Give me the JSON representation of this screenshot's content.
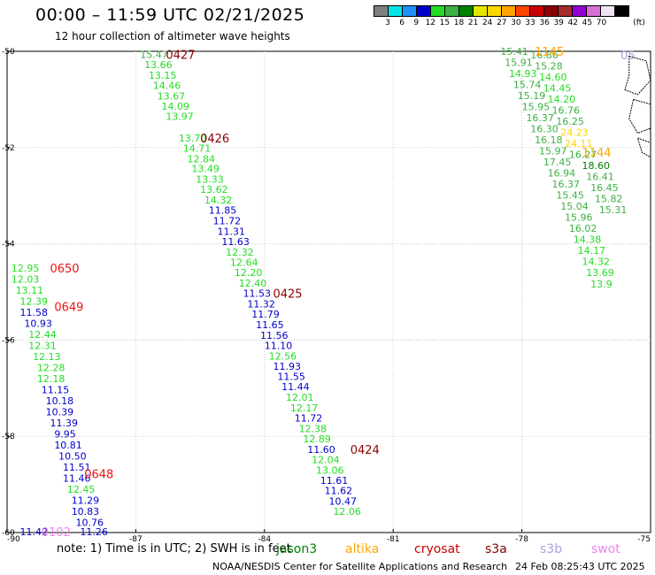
{
  "header": {
    "title": "00:00 – 11:59 UTC 02/21/2025",
    "subtitle": "12 hour collection of altimeter wave heights"
  },
  "color_scale": {
    "unit_label": "(ft)",
    "swatches": [
      "#808080",
      "#00e6e6",
      "#1e90ff",
      "#0000cd",
      "#22dd22",
      "#3cb043",
      "#008000",
      "#e6e600",
      "#ffd700",
      "#ffa500",
      "#ff4500",
      "#cc0000",
      "#8b0000",
      "#a52a2a",
      "#9400d3",
      "#da70d6",
      "#f0e6f0",
      "#000000"
    ],
    "labels": [
      "3",
      "6",
      "9",
      "12",
      "15",
      "18",
      "21",
      "24",
      "27",
      "30",
      "33",
      "36",
      "39",
      "42",
      "45",
      "70"
    ]
  },
  "footer": {
    "note": "note:  1) Time is in UTC; 2) SWH is in feet",
    "credit": "NOAA/NESDIS Center for Satellite Applications and Research",
    "timestamp": "24 Feb 08:25:43 UTC 2025",
    "missions": [
      {
        "name": "jason3",
        "color": "#008000"
      },
      {
        "name": "altika",
        "color": "#ffa500"
      },
      {
        "name": "cryosat",
        "color": "#cc0000"
      },
      {
        "name": "s3a",
        "color": "#8b0000"
      },
      {
        "name": "s3b",
        "color": "#b0a0e0"
      },
      {
        "name": "swot",
        "color": "#ee82ee"
      }
    ]
  },
  "chart_data": {
    "type": "scatter",
    "xlim": [
      -90,
      -75
    ],
    "ylim": [
      -60,
      -50
    ],
    "x_ticks": [
      -90,
      -87,
      -84,
      -81,
      -78,
      -75
    ],
    "y_ticks": [
      -50,
      -52,
      -54,
      -56,
      -58,
      -60
    ],
    "x_tick_labels": [
      "-90",
      "-87",
      "-84",
      "-81",
      "-78",
      "-75"
    ],
    "y_tick_labels": [
      "-50",
      "-52",
      "-54",
      "-56",
      "-58",
      "-60"
    ],
    "grid": true,
    "series": [
      {
        "name": "track-0427-0424",
        "points": [
          {
            "lon": -86.9,
            "lat": -50.06,
            "v": "15.47",
            "c": "#3cb043"
          },
          {
            "lon": -86.8,
            "lat": -50.28,
            "v": "13.66",
            "c": "#22dd22"
          },
          {
            "lon": -86.7,
            "lat": -50.5,
            "v": "13.15",
            "c": "#22dd22"
          },
          {
            "lon": -86.6,
            "lat": -50.71,
            "v": "14.46",
            "c": "#22dd22"
          },
          {
            "lon": -86.5,
            "lat": -50.93,
            "v": "13.67",
            "c": "#22dd22"
          },
          {
            "lon": -86.4,
            "lat": -51.14,
            "v": "14.09",
            "c": "#22dd22"
          },
          {
            "lon": -86.3,
            "lat": -51.35,
            "v": "13.97",
            "c": "#22dd22"
          },
          {
            "lon": -86.0,
            "lat": -51.8,
            "v": "13.70",
            "c": "#22dd22"
          },
          {
            "lon": -85.9,
            "lat": -52.01,
            "v": "14.71",
            "c": "#22dd22"
          },
          {
            "lon": -85.8,
            "lat": -52.23,
            "v": "12.84",
            "c": "#22dd22"
          },
          {
            "lon": -85.7,
            "lat": -52.44,
            "v": "13.49",
            "c": "#22dd22"
          },
          {
            "lon": -85.6,
            "lat": -52.66,
            "v": "13.33",
            "c": "#22dd22"
          },
          {
            "lon": -85.5,
            "lat": -52.87,
            "v": "13.62",
            "c": "#22dd22"
          },
          {
            "lon": -85.4,
            "lat": -53.09,
            "v": "14.32",
            "c": "#22dd22"
          },
          {
            "lon": -85.3,
            "lat": -53.3,
            "v": "11.85",
            "c": "#0000cd"
          },
          {
            "lon": -85.2,
            "lat": -53.52,
            "v": "11.72",
            "c": "#0000cd"
          },
          {
            "lon": -85.1,
            "lat": -53.74,
            "v": "11.31",
            "c": "#0000cd"
          },
          {
            "lon": -85.0,
            "lat": -53.95,
            "v": "11.63",
            "c": "#0000cd"
          },
          {
            "lon": -84.9,
            "lat": -54.17,
            "v": "12.32",
            "c": "#22dd22"
          },
          {
            "lon": -84.8,
            "lat": -54.38,
            "v": "12.64",
            "c": "#22dd22"
          },
          {
            "lon": -84.7,
            "lat": -54.6,
            "v": "12.20",
            "c": "#22dd22"
          },
          {
            "lon": -84.6,
            "lat": -54.82,
            "v": "12.40",
            "c": "#22dd22"
          },
          {
            "lon": -84.5,
            "lat": -55.03,
            "v": "11.53",
            "c": "#0000cd"
          },
          {
            "lon": -84.4,
            "lat": -55.25,
            "v": "11.32",
            "c": "#0000cd"
          },
          {
            "lon": -84.3,
            "lat": -55.46,
            "v": "11.79",
            "c": "#0000cd"
          },
          {
            "lon": -84.2,
            "lat": -55.68,
            "v": "11.65",
            "c": "#0000cd"
          },
          {
            "lon": -84.1,
            "lat": -55.9,
            "v": "11.56",
            "c": "#0000cd"
          },
          {
            "lon": -84.0,
            "lat": -56.11,
            "v": "11.10",
            "c": "#0000cd"
          },
          {
            "lon": -83.9,
            "lat": -56.33,
            "v": "12.56",
            "c": "#22dd22"
          },
          {
            "lon": -83.8,
            "lat": -56.54,
            "v": "11.93",
            "c": "#0000cd"
          },
          {
            "lon": -83.7,
            "lat": -56.76,
            "v": "11.55",
            "c": "#0000cd"
          },
          {
            "lon": -83.6,
            "lat": -56.97,
            "v": "11.44",
            "c": "#0000cd"
          },
          {
            "lon": -83.5,
            "lat": -57.19,
            "v": "12.01",
            "c": "#22dd22"
          },
          {
            "lon": -83.4,
            "lat": -57.41,
            "v": "12.17",
            "c": "#22dd22"
          },
          {
            "lon": -83.3,
            "lat": -57.62,
            "v": "11.72",
            "c": "#0000cd"
          },
          {
            "lon": -83.2,
            "lat": -57.84,
            "v": "12.38",
            "c": "#22dd22"
          },
          {
            "lon": -83.1,
            "lat": -58.05,
            "v": "12.89",
            "c": "#22dd22"
          },
          {
            "lon": -83.0,
            "lat": -58.27,
            "v": "11.60",
            "c": "#0000cd"
          },
          {
            "lon": -82.9,
            "lat": -58.48,
            "v": "12.04",
            "c": "#22dd22"
          },
          {
            "lon": -82.8,
            "lat": -58.7,
            "v": "13.06",
            "c": "#22dd22"
          },
          {
            "lon": -82.7,
            "lat": -58.92,
            "v": "11.61",
            "c": "#0000cd"
          },
          {
            "lon": -82.6,
            "lat": -59.13,
            "v": "11.62",
            "c": "#0000cd"
          },
          {
            "lon": -82.5,
            "lat": -59.35,
            "v": "10.47",
            "c": "#0000cd"
          },
          {
            "lon": -82.4,
            "lat": -59.56,
            "v": "12.06",
            "c": "#22dd22"
          }
        ]
      },
      {
        "name": "track-0650-0648",
        "points": [
          {
            "lon": -89.9,
            "lat": -54.5,
            "v": "12.95",
            "c": "#22dd22"
          },
          {
            "lon": -89.9,
            "lat": -54.73,
            "v": "12.03",
            "c": "#22dd22"
          },
          {
            "lon": -89.8,
            "lat": -54.96,
            "v": "13.11",
            "c": "#22dd22"
          },
          {
            "lon": -89.7,
            "lat": -55.19,
            "v": "12.39",
            "c": "#22dd22"
          },
          {
            "lon": -89.7,
            "lat": -55.42,
            "v": "11.58",
            "c": "#0000cd"
          },
          {
            "lon": -89.6,
            "lat": -55.65,
            "v": "10.93",
            "c": "#0000cd"
          },
          {
            "lon": -89.5,
            "lat": -55.88,
            "v": "12.44",
            "c": "#22dd22"
          },
          {
            "lon": -89.5,
            "lat": -56.11,
            "v": "12.31",
            "c": "#22dd22"
          },
          {
            "lon": -89.4,
            "lat": -56.34,
            "v": "12.13",
            "c": "#22dd22"
          },
          {
            "lon": -89.3,
            "lat": -56.57,
            "v": "12.28",
            "c": "#22dd22"
          },
          {
            "lon": -89.3,
            "lat": -56.8,
            "v": "12.18",
            "c": "#22dd22"
          },
          {
            "lon": -89.2,
            "lat": -57.03,
            "v": "11.15",
            "c": "#0000cd"
          },
          {
            "lon": -89.1,
            "lat": -57.26,
            "v": "10.18",
            "c": "#0000cd"
          },
          {
            "lon": -89.1,
            "lat": -57.49,
            "v": "10.39",
            "c": "#0000cd"
          },
          {
            "lon": -89.0,
            "lat": -57.72,
            "v": "11.39",
            "c": "#0000cd"
          },
          {
            "lon": -88.9,
            "lat": -57.95,
            "v": "9.95",
            "c": "#0000cd"
          },
          {
            "lon": -88.9,
            "lat": -58.18,
            "v": "10.81",
            "c": "#0000cd"
          },
          {
            "lon": -88.8,
            "lat": -58.41,
            "v": "10.50",
            "c": "#0000cd"
          },
          {
            "lon": -88.7,
            "lat": -58.64,
            "v": "11.51",
            "c": "#0000cd"
          },
          {
            "lon": -88.7,
            "lat": -58.87,
            "v": "11.46",
            "c": "#0000cd"
          },
          {
            "lon": -88.6,
            "lat": -59.1,
            "v": "12.45",
            "c": "#22dd22"
          },
          {
            "lon": -88.5,
            "lat": -59.33,
            "v": "11.29",
            "c": "#0000cd"
          },
          {
            "lon": -88.5,
            "lat": -59.56,
            "v": "10.83",
            "c": "#0000cd"
          },
          {
            "lon": -88.4,
            "lat": -59.79,
            "v": "10.76",
            "c": "#0000cd"
          },
          {
            "lon": -88.3,
            "lat": -59.98,
            "v": "11.26",
            "c": "#0000cd"
          },
          {
            "lon": -89.7,
            "lat": -59.98,
            "v": "11.42",
            "c": "#0000cd"
          }
        ]
      },
      {
        "name": "track-right-green",
        "points": [
          {
            "lon": -78.5,
            "lat": -50.0,
            "v": "15.41",
            "c": "#3cb043"
          },
          {
            "lon": -78.4,
            "lat": -50.23,
            "v": "15.91",
            "c": "#3cb043"
          },
          {
            "lon": -78.3,
            "lat": -50.46,
            "v": "14.93",
            "c": "#22dd22"
          },
          {
            "lon": -78.2,
            "lat": -50.69,
            "v": "15.74",
            "c": "#3cb043"
          },
          {
            "lon": -78.1,
            "lat": -50.92,
            "v": "15.19",
            "c": "#3cb043"
          },
          {
            "lon": -78.0,
            "lat": -51.15,
            "v": "15.95",
            "c": "#3cb043"
          },
          {
            "lon": -77.9,
            "lat": -51.38,
            "v": "16.37",
            "c": "#3cb043"
          },
          {
            "lon": -77.8,
            "lat": -51.61,
            "v": "16.30",
            "c": "#3cb043"
          },
          {
            "lon": -77.7,
            "lat": -51.84,
            "v": "16.18",
            "c": "#3cb043"
          },
          {
            "lon": -77.6,
            "lat": -52.07,
            "v": "15.97",
            "c": "#3cb043"
          },
          {
            "lon": -77.5,
            "lat": -52.3,
            "v": "17.45",
            "c": "#3cb043"
          },
          {
            "lon": -77.4,
            "lat": -52.53,
            "v": "16.94",
            "c": "#3cb043"
          },
          {
            "lon": -77.3,
            "lat": -52.76,
            "v": "16.37",
            "c": "#3cb043"
          },
          {
            "lon": -77.2,
            "lat": -52.99,
            "v": "15.45",
            "c": "#3cb043"
          },
          {
            "lon": -77.1,
            "lat": -53.22,
            "v": "15.04",
            "c": "#3cb043"
          },
          {
            "lon": -77.0,
            "lat": -53.45,
            "v": "15.96",
            "c": "#3cb043"
          },
          {
            "lon": -76.9,
            "lat": -53.68,
            "v": "16.02",
            "c": "#3cb043"
          },
          {
            "lon": -76.8,
            "lat": -53.91,
            "v": "14.38",
            "c": "#22dd22"
          },
          {
            "lon": -76.7,
            "lat": -54.14,
            "v": "14.17",
            "c": "#22dd22"
          },
          {
            "lon": -76.6,
            "lat": -54.37,
            "v": "14.32",
            "c": "#22dd22"
          },
          {
            "lon": -76.5,
            "lat": -54.6,
            "v": "13.69",
            "c": "#22dd22"
          },
          {
            "lon": -76.4,
            "lat": -54.83,
            "v": "13.9",
            "c": "#22dd22"
          }
        ]
      },
      {
        "name": "track-right-2",
        "points": [
          {
            "lon": -77.8,
            "lat": -50.07,
            "v": "16.86",
            "c": "#3cb043"
          },
          {
            "lon": -77.7,
            "lat": -50.3,
            "v": "15.28",
            "c": "#3cb043"
          },
          {
            "lon": -77.6,
            "lat": -50.53,
            "v": "14.60",
            "c": "#22dd22"
          },
          {
            "lon": -77.5,
            "lat": -50.76,
            "v": "14.45",
            "c": "#22dd22"
          },
          {
            "lon": -77.4,
            "lat": -50.99,
            "v": "14.20",
            "c": "#22dd22"
          },
          {
            "lon": -77.3,
            "lat": -51.22,
            "v": "16.76",
            "c": "#3cb043"
          },
          {
            "lon": -77.2,
            "lat": -51.45,
            "v": "16.25",
            "c": "#3cb043"
          },
          {
            "lon": -77.1,
            "lat": -51.68,
            "v": "24.23",
            "c": "#ffd700"
          },
          {
            "lon": -77.0,
            "lat": -51.91,
            "v": "24.11",
            "c": "#ffd700"
          },
          {
            "lon": -76.9,
            "lat": -52.14,
            "v": "16.27",
            "c": "#3cb043"
          },
          {
            "lon": -76.6,
            "lat": -52.37,
            "v": "18.60",
            "c": "#008000"
          },
          {
            "lon": -76.5,
            "lat": -52.6,
            "v": "16.41",
            "c": "#3cb043"
          },
          {
            "lon": -76.4,
            "lat": -52.83,
            "v": "16.45",
            "c": "#3cb043"
          },
          {
            "lon": -76.3,
            "lat": -53.06,
            "v": "15.82",
            "c": "#3cb043"
          },
          {
            "lon": -76.2,
            "lat": -53.29,
            "v": "15.31",
            "c": "#3cb043"
          }
        ]
      }
    ],
    "time_labels": [
      {
        "lon": -86.3,
        "lat": -50.06,
        "text": "0427",
        "c": "#8b0000"
      },
      {
        "lon": -85.5,
        "lat": -51.8,
        "text": "0426",
        "c": "#8b0000"
      },
      {
        "lon": -83.8,
        "lat": -55.03,
        "text": "0425",
        "c": "#8b0000"
      },
      {
        "lon": -82.0,
        "lat": -58.27,
        "text": "0424",
        "c": "#8b0000"
      },
      {
        "lon": -89.0,
        "lat": -54.5,
        "text": "0650",
        "c": "#ee1111"
      },
      {
        "lon": -88.9,
        "lat": -55.3,
        "text": "0649",
        "c": "#ee1111"
      },
      {
        "lon": -88.2,
        "lat": -58.78,
        "text": "0648",
        "c": "#ee1111"
      },
      {
        "lon": -77.7,
        "lat": -50.0,
        "text": "1145",
        "c": "#ffa500"
      },
      {
        "lon": -76.6,
        "lat": -52.1,
        "text": "1144",
        "c": "#ffa500"
      },
      {
        "lon": -75.7,
        "lat": -50.07,
        "text": "05",
        "c": "#b0a0e0"
      },
      {
        "lon": -89.2,
        "lat": -59.98,
        "text": "0102",
        "c": "#ee82ee"
      }
    ]
  }
}
